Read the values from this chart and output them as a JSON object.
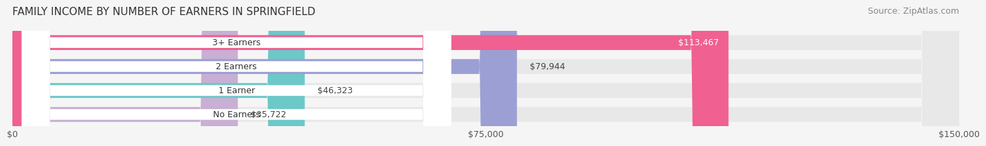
{
  "title": "FAMILY INCOME BY NUMBER OF EARNERS IN SPRINGFIELD",
  "source": "Source: ZipAtlas.com",
  "categories": [
    "No Earners",
    "1 Earner",
    "2 Earners",
    "3+ Earners"
  ],
  "values": [
    35722,
    46323,
    79944,
    113467
  ],
  "value_labels": [
    "$35,722",
    "$46,323",
    "$79,944",
    "$113,467"
  ],
  "bar_colors": [
    "#c9afd4",
    "#6dc8c8",
    "#9b9fd4",
    "#f06090"
  ],
  "bar_bg_color": "#e8e8e8",
  "label_bg_color": "#ffffff",
  "xlim": [
    0,
    150000
  ],
  "xticks": [
    0,
    75000,
    150000
  ],
  "xtick_labels": [
    "$0",
    "$75,000",
    "$150,000"
  ],
  "fig_bg_color": "#f5f5f5",
  "title_fontsize": 11,
  "source_fontsize": 9,
  "bar_label_fontsize": 9,
  "value_label_fontsize": 9,
  "axis_label_fontsize": 9
}
